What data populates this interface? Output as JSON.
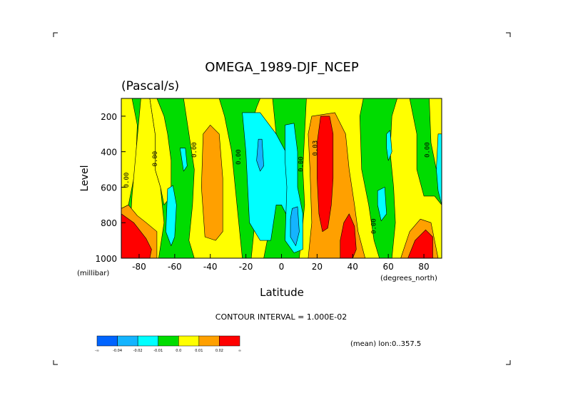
{
  "chart_data": {
    "type": "heatmap",
    "title": "OMEGA_1989-DJF_NCEP",
    "subtitle": "(Pascal/s)",
    "xlabel": "Latitude",
    "x_units": "(degrees_north)",
    "ylabel": "Level",
    "y_units": "(millibar)",
    "xlim": [
      -90,
      90
    ],
    "ylim": [
      1000,
      100
    ],
    "x_ticks": [
      -80,
      -60,
      -40,
      -20,
      0,
      20,
      40,
      60,
      80
    ],
    "x_tick_labels": [
      "-80",
      "-60",
      "-40",
      "-20",
      "0",
      "20",
      "40",
      "60",
      "80"
    ],
    "y_ticks": [
      200,
      400,
      600,
      800,
      1000
    ],
    "y_tick_labels": [
      "200",
      "400",
      "600",
      "800",
      "1000"
    ],
    "contour_interval_text": "CONTOUR INTERVAL = 1.000E-02",
    "mean_text": "(mean) lon:0..357.5",
    "contour_labels": [
      {
        "text": "0.00",
        "lat": -86,
        "lev": 560
      },
      {
        "text": "0.00",
        "lat": -70,
        "lev": 440
      },
      {
        "text": "0.00",
        "lat": -48,
        "lev": 390
      },
      {
        "text": "0.00",
        "lat": -23,
        "lev": 430
      },
      {
        "text": "0.00",
        "lat": 12,
        "lev": 470
      },
      {
        "text": "0.03",
        "lat": 20,
        "lev": 380
      },
      {
        "text": "0.00",
        "lat": 53,
        "lev": 820
      },
      {
        "text": "0.00",
        "lat": 83,
        "lev": 390
      }
    ],
    "levels": [
      {
        "name": "-0.04",
        "color": "#0064ff"
      },
      {
        "name": "-0.02",
        "color": "#14b4ff"
      },
      {
        "name": "-0.01",
        "color": "#00ffff"
      },
      {
        "name": "0.0",
        "color": "#00dc00"
      },
      {
        "name": "0.01",
        "color": "#ffff00"
      },
      {
        "name": "0.02",
        "color": "#ffa000"
      },
      {
        "name": "0.03",
        "color": "#ff0000"
      }
    ],
    "colorbar_labels": [
      "-∞",
      "-0.04",
      "-0.02",
      "-0.01",
      "0.0",
      "0.01",
      "0.02",
      "∞"
    ],
    "background_color": "#00dc00",
    "regions": [
      {
        "value": "0.01",
        "points": [
          [
            -90,
            1000
          ],
          [
            -90,
            100
          ],
          [
            -84,
            100
          ],
          [
            -81,
            250
          ],
          [
            -82,
            500
          ],
          [
            -86,
            700
          ],
          [
            -90,
            720
          ]
        ]
      },
      {
        "value": "0.01",
        "points": [
          [
            -84,
            650
          ],
          [
            -79,
            100
          ],
          [
            -74,
            100
          ],
          [
            -71,
            300
          ],
          [
            -71,
            500
          ],
          [
            -68,
            600
          ],
          [
            -67,
            700
          ],
          [
            -66,
            800
          ],
          [
            -69,
            1000
          ],
          [
            -86,
            1000
          ]
        ]
      },
      {
        "value": "0.01",
        "points": [
          [
            -79,
            100
          ],
          [
            -74,
            100
          ],
          [
            -71,
            300
          ],
          [
            -71,
            500
          ],
          [
            -68,
            600
          ],
          [
            -66,
            700
          ],
          [
            -62,
            650
          ],
          [
            -62,
            450
          ],
          [
            -64,
            300
          ],
          [
            -66,
            200
          ],
          [
            -70,
            100
          ]
        ]
      },
      {
        "value": "0.01",
        "points": [
          [
            -58,
            100
          ],
          [
            -55,
            100
          ],
          [
            -52,
            300
          ],
          [
            -49,
            500
          ],
          [
            -50,
            700
          ],
          [
            -52,
            900
          ],
          [
            -49,
            1000
          ],
          [
            -22,
            1000
          ],
          [
            -25,
            700
          ],
          [
            -28,
            400
          ],
          [
            -32,
            200
          ],
          [
            -35,
            100
          ]
        ]
      },
      {
        "value": "0.02",
        "points": [
          [
            -44,
            300
          ],
          [
            -40,
            250
          ],
          [
            -35,
            300
          ],
          [
            -33,
            550
          ],
          [
            -33,
            850
          ],
          [
            -37,
            900
          ],
          [
            -43,
            880
          ],
          [
            -45,
            600
          ]
        ]
      },
      {
        "value": "0.01",
        "points": [
          [
            -12,
            100
          ],
          [
            -5,
            100
          ],
          [
            -3,
            300
          ],
          [
            -1,
            500
          ],
          [
            -5,
            700
          ],
          [
            -8,
            900
          ],
          [
            -10,
            1000
          ],
          [
            -17,
            1000
          ],
          [
            -15,
            800
          ],
          [
            -15,
            400
          ],
          [
            -17,
            250
          ],
          [
            -14,
            150
          ]
        ]
      },
      {
        "value": "0.01",
        "points": [
          [
            14,
            100
          ],
          [
            46,
            100
          ],
          [
            44,
            200
          ],
          [
            45,
            500
          ],
          [
            49,
            700
          ],
          [
            52,
            900
          ],
          [
            55,
            1000
          ],
          [
            10,
            1000
          ],
          [
            13,
            700
          ],
          [
            12,
            500
          ],
          [
            13,
            300
          ]
        ]
      },
      {
        "value": "0.02",
        "points": [
          [
            17,
            200
          ],
          [
            30,
            180
          ],
          [
            36,
            300
          ],
          [
            38,
            500
          ],
          [
            41,
            700
          ],
          [
            43,
            850
          ],
          [
            47,
            1000
          ],
          [
            15,
            1000
          ],
          [
            17,
            800
          ],
          [
            16,
            500
          ],
          [
            15,
            300
          ]
        ]
      },
      {
        "value": "0.03",
        "points": [
          [
            22,
            200
          ],
          [
            27,
            200
          ],
          [
            29,
            300
          ],
          [
            29,
            550
          ],
          [
            28,
            700
          ],
          [
            26,
            830
          ],
          [
            23,
            850
          ],
          [
            21,
            750
          ],
          [
            20,
            550
          ],
          [
            20,
            350
          ]
        ]
      },
      {
        "value": "0.03",
        "points": [
          [
            35,
            800
          ],
          [
            38,
            750
          ],
          [
            41,
            820
          ],
          [
            42,
            950
          ],
          [
            40,
            1000
          ],
          [
            33,
            1000
          ],
          [
            33,
            900
          ]
        ]
      },
      {
        "value": "0.01",
        "points": [
          [
            62,
            1000
          ],
          [
            64,
            800
          ],
          [
            63,
            600
          ],
          [
            61,
            400
          ],
          [
            62,
            200
          ],
          [
            65,
            100
          ],
          [
            72,
            100
          ],
          [
            76,
            300
          ],
          [
            76,
            500
          ],
          [
            80,
            650
          ],
          [
            86,
            650
          ],
          [
            90,
            700
          ],
          [
            90,
            1000
          ]
        ]
      },
      {
        "value": "0.02",
        "points": [
          [
            67,
            1000
          ],
          [
            72,
            850
          ],
          [
            78,
            780
          ],
          [
            84,
            800
          ],
          [
            88,
            1000
          ]
        ]
      },
      {
        "value": "0.03",
        "points": [
          [
            71,
            1000
          ],
          [
            75,
            900
          ],
          [
            81,
            840
          ],
          [
            85,
            880
          ],
          [
            85,
            1000
          ]
        ]
      },
      {
        "value": "0.01",
        "points": [
          [
            83,
            100
          ],
          [
            90,
            100
          ],
          [
            90,
            500
          ],
          [
            87,
            500
          ],
          [
            84,
            350
          ]
        ]
      },
      {
        "value": "-0.01",
        "points": [
          [
            88,
            300
          ],
          [
            90,
            300
          ],
          [
            90,
            700
          ],
          [
            88,
            620
          ],
          [
            87,
            500
          ]
        ]
      },
      {
        "value": "-0.01",
        "points": [
          [
            -22,
            180
          ],
          [
            -12,
            180
          ],
          [
            -3,
            300
          ],
          [
            5,
            450
          ],
          [
            5,
            800
          ],
          [
            0,
            700
          ],
          [
            -3,
            700
          ],
          [
            -6,
            900
          ],
          [
            -12,
            900
          ],
          [
            -18,
            800
          ],
          [
            -20,
            400
          ]
        ]
      },
      {
        "value": "-0.01",
        "points": [
          [
            2,
            250
          ],
          [
            7,
            240
          ],
          [
            9,
            400
          ],
          [
            9,
            600
          ],
          [
            12,
            750
          ],
          [
            12,
            950
          ],
          [
            7,
            970
          ],
          [
            2,
            900
          ],
          [
            3,
            600
          ],
          [
            2,
            450
          ]
        ]
      },
      {
        "value": "-0.02",
        "points": [
          [
            -13,
            330
          ],
          [
            -11,
            330
          ],
          [
            -10,
            480
          ],
          [
            -12,
            510
          ],
          [
            -14,
            450
          ]
        ]
      },
      {
        "value": "-0.02",
        "points": [
          [
            6,
            720
          ],
          [
            9,
            710
          ],
          [
            10,
            850
          ],
          [
            8,
            930
          ],
          [
            5,
            880
          ],
          [
            5,
            780
          ]
        ]
      },
      {
        "value": "-0.01",
        "points": [
          [
            -64,
            610
          ],
          [
            -61,
            590
          ],
          [
            -59,
            700
          ],
          [
            -60,
            880
          ],
          [
            -62,
            930
          ],
          [
            -65,
            850
          ]
        ]
      },
      {
        "value": "-0.01",
        "points": [
          [
            -57,
            380
          ],
          [
            -54,
            380
          ],
          [
            -53,
            480
          ],
          [
            -55,
            510
          ]
        ]
      },
      {
        "value": "-0.01",
        "points": [
          [
            54,
            620
          ],
          [
            58,
            600
          ],
          [
            59,
            750
          ],
          [
            56,
            790
          ],
          [
            54,
            700
          ]
        ]
      },
      {
        "value": "-0.01",
        "points": [
          [
            59,
            300
          ],
          [
            61,
            280
          ],
          [
            62,
            400
          ],
          [
            60,
            450
          ],
          [
            59,
            380
          ]
        ]
      },
      {
        "value": "0.02",
        "points": [
          [
            -90,
            720
          ],
          [
            -86,
            700
          ],
          [
            -81,
            760
          ],
          [
            -76,
            800
          ],
          [
            -70,
            850
          ],
          [
            -70,
            1000
          ],
          [
            -90,
            1000
          ]
        ]
      },
      {
        "value": "0.03",
        "points": [
          [
            -90,
            750
          ],
          [
            -83,
            800
          ],
          [
            -76,
            890
          ],
          [
            -73,
            950
          ],
          [
            -74,
            1000
          ],
          [
            -90,
            1000
          ]
        ]
      }
    ]
  }
}
